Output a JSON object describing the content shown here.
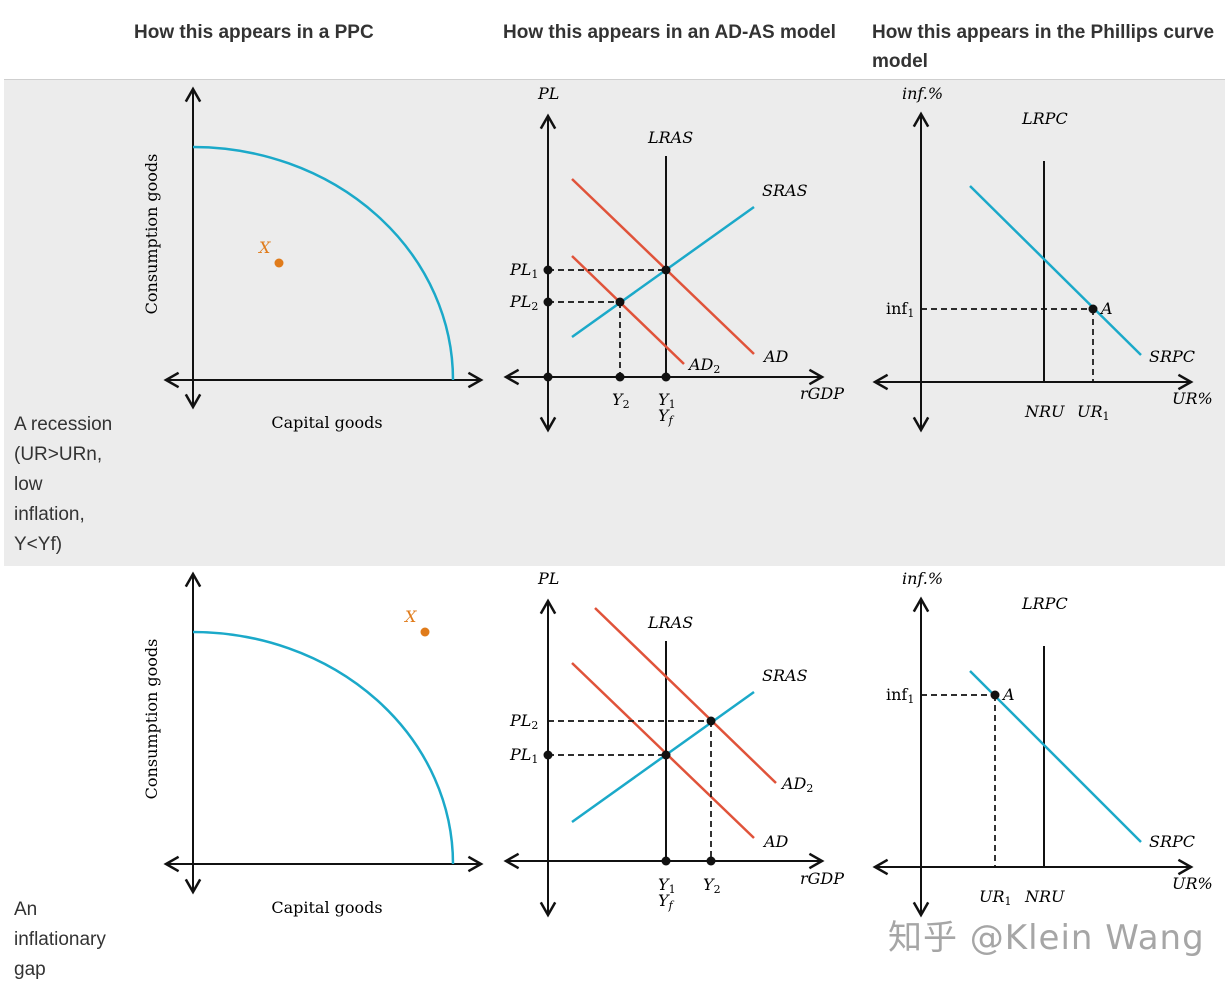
{
  "headers": {
    "ppc": "How this appears in a PPC",
    "adas": "How this appears in an AD-AS model",
    "phillips": "How this appears in the Phillips curve model"
  },
  "rows": [
    {
      "label_lines": [
        "A recession",
        "(UR>URn,",
        "low",
        "inflation,",
        "Y<Yf)"
      ],
      "ppc": {
        "x_label": "Capital goods",
        "y_label": "Consumption goods",
        "point_label": "X"
      },
      "adas": {
        "y_label": "PL",
        "x_label": "rGDP",
        "lras": "LRAS",
        "sras": "SRAS",
        "ad": "AD",
        "ad2": "AD",
        "ad2_sub": "2",
        "pl_hi": "PL",
        "pl_hi_sub": "1",
        "pl_lo": "PL",
        "pl_lo_sub": "2",
        "y_left": "Y",
        "y_left_sub": "2",
        "y_mid": "Y",
        "y_mid_sub": "1",
        "yf": "Y",
        "yf_sub": "f"
      },
      "phillips": {
        "y_label": "inf.%",
        "x_label": "UR%",
        "lrpc": "LRPC",
        "srpc": "SRPC",
        "inf": "inf",
        "inf_sub": "1",
        "point": "A",
        "nru": "NRU",
        "ur": "UR",
        "ur_sub": "1"
      }
    },
    {
      "label_lines": [
        "An",
        "inflationary",
        "gap"
      ],
      "ppc": {
        "x_label": "Capital goods",
        "y_label": "Consumption goods",
        "point_label": "X"
      },
      "adas": {
        "y_label": "PL",
        "x_label": "rGDP",
        "lras": "LRAS",
        "sras": "SRAS",
        "ad": "AD",
        "ad2": "AD",
        "ad2_sub": "2",
        "pl_hi": "PL",
        "pl_hi_sub": "2",
        "pl_lo": "PL",
        "pl_lo_sub": "1",
        "y_mid": "Y",
        "y_mid_sub": "1",
        "yf": "Y",
        "yf_sub": "f",
        "y_right": "Y",
        "y_right_sub": "2"
      },
      "phillips": {
        "y_label": "inf.%",
        "x_label": "UR%",
        "lrpc": "LRPC",
        "srpc": "SRPC",
        "inf": "inf",
        "inf_sub": "1",
        "point": "A",
        "nru": "NRU",
        "ur": "UR",
        "ur_sub": "1"
      }
    }
  ],
  "watermark": "知乎 @Klein Wang",
  "colors": {
    "curve_blue": "#1ba9c9",
    "curve_red": "#e0533a",
    "point_orange": "#e07b1a",
    "axis": "#111111"
  }
}
